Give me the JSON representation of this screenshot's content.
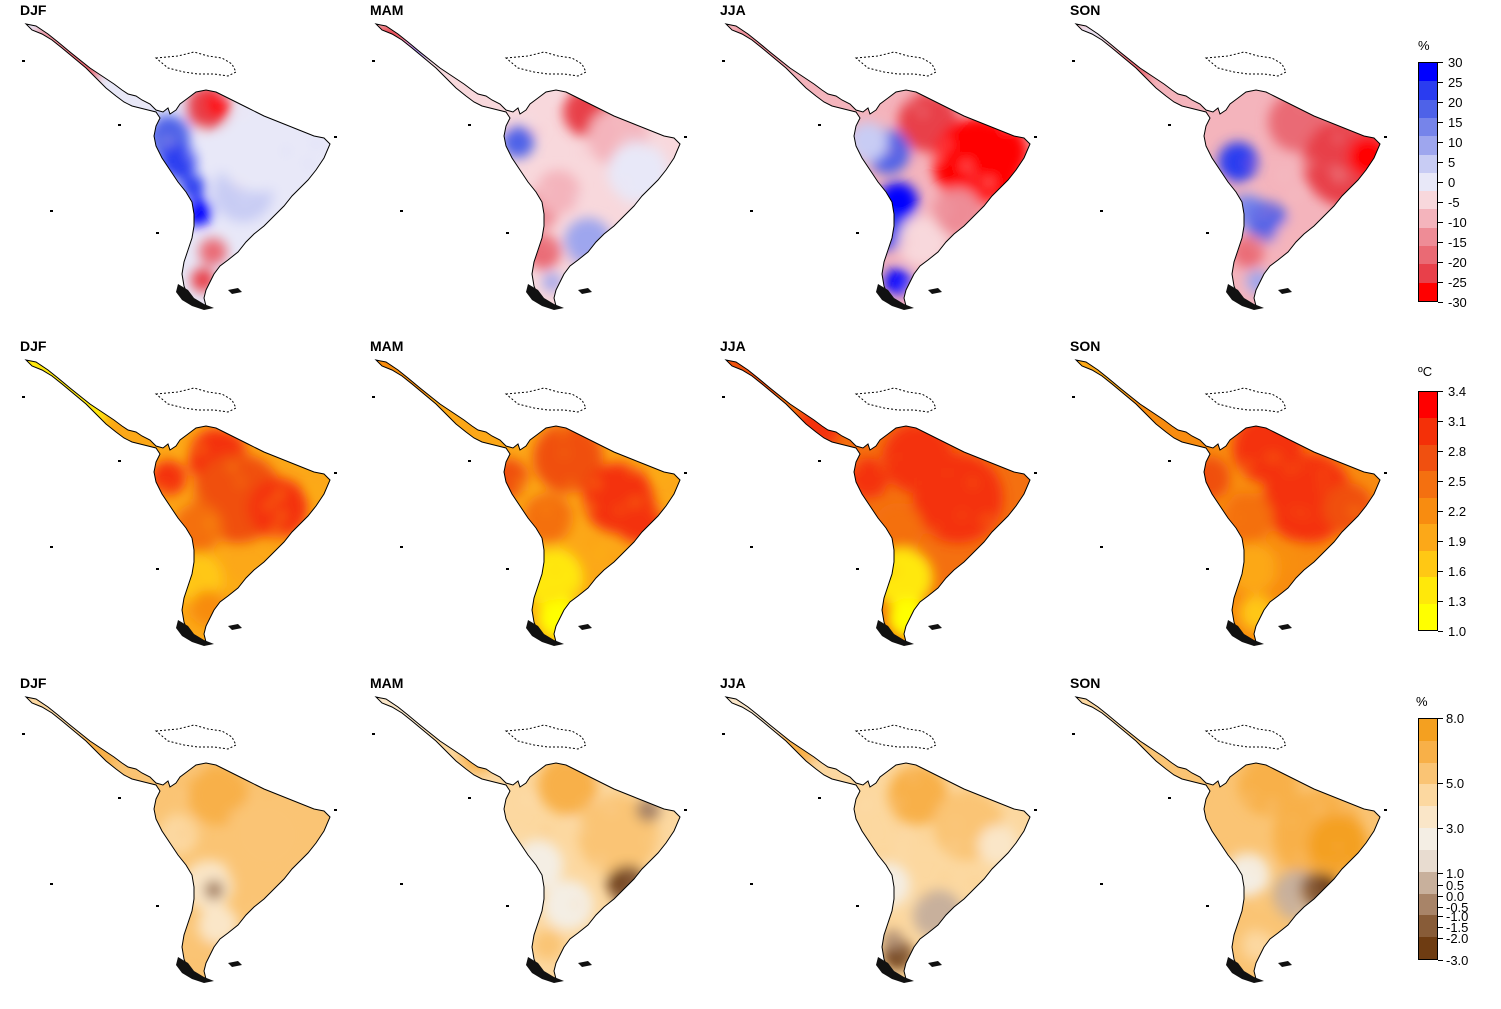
{
  "rows": [
    {
      "id": "precip",
      "panels": [
        {
          "season": "DJF",
          "palette": "precip",
          "pattern": "precip-djf"
        },
        {
          "season": "MAM",
          "palette": "precip",
          "pattern": "precip-mam"
        },
        {
          "season": "JJA",
          "palette": "precip",
          "pattern": "precip-jja"
        },
        {
          "season": "SON",
          "palette": "precip",
          "pattern": "precip-son"
        }
      ],
      "legend": {
        "unit": "%",
        "ticks": [
          "30",
          "25",
          "20",
          "15",
          "10",
          "5",
          "0",
          "-5",
          "-10",
          "-15",
          "-20",
          "-25",
          "-30"
        ],
        "colors": [
          "#0000ff",
          "#2a3cf0",
          "#4e62e8",
          "#7684ea",
          "#9ea6ee",
          "#c8ccf4",
          "#e8e8f8",
          "#f8d8dc",
          "#f4b4bc",
          "#ee8c96",
          "#ea6a74",
          "#e8404a",
          "#ff0000"
        ]
      }
    },
    {
      "id": "temp",
      "panels": [
        {
          "season": "DJF",
          "palette": "temp",
          "pattern": "temp-djf"
        },
        {
          "season": "MAM",
          "palette": "temp",
          "pattern": "temp-mam"
        },
        {
          "season": "JJA",
          "palette": "temp",
          "pattern": "temp-jja"
        },
        {
          "season": "SON",
          "palette": "temp",
          "pattern": "temp-son"
        }
      ],
      "legend": {
        "unit": "ºC",
        "ticks": [
          "3.4",
          "3.1",
          "2.8",
          "2.5",
          "2.2",
          "1.9",
          "1.6",
          "1.3",
          "1.0"
        ],
        "colors": [
          "#ff0000",
          "#f43008",
          "#f05010",
          "#f47010",
          "#f88c10",
          "#fca818",
          "#ffc814",
          "#ffe80a",
          "#ffff00"
        ]
      }
    },
    {
      "id": "change",
      "panels": [
        {
          "season": "DJF",
          "palette": "change",
          "pattern": "change-djf"
        },
        {
          "season": "MAM",
          "palette": "change",
          "pattern": "change-mam"
        },
        {
          "season": "JJA",
          "palette": "change",
          "pattern": "change-jja"
        },
        {
          "season": "SON",
          "palette": "change",
          "pattern": "change-son"
        }
      ],
      "legend": {
        "unit": "%",
        "ticks": [
          "8.0",
          "5.0",
          "3.0",
          "1.0",
          "0.5",
          "0.0",
          "-0.5",
          "-1.0",
          "-1.5",
          "-2.0",
          "-3.0"
        ],
        "colors": [
          "#f4a020",
          "#f8b048",
          "#fac474",
          "#fcd8a0",
          "#fae6c8",
          "#f4eee4",
          "#e8dcd0",
          "#c8b09c",
          "#a88468",
          "#885c38",
          "#6e3c12"
        ]
      }
    }
  ]
}
